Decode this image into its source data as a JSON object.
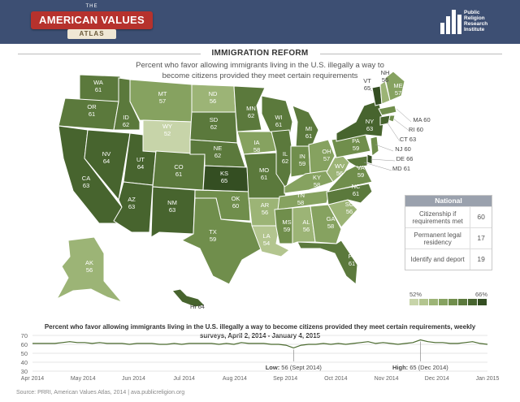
{
  "header": {
    "logo_the": "THE",
    "logo_main": "AMERICAN VALUES",
    "logo_sub": "ATLAS",
    "org_name": [
      "Public",
      "Religion",
      "Research",
      "Institute"
    ]
  },
  "title": "IMMIGRATION REFORM",
  "subtitle": "Percent who favor allowing immigrants living in the U.S. illegally a way to become citizens provided they meet certain requirements",
  "map": {
    "states": [
      {
        "abbr": "WA",
        "value": 61
      },
      {
        "abbr": "OR",
        "value": 61
      },
      {
        "abbr": "CA",
        "value": 63
      },
      {
        "abbr": "ID",
        "value": 62
      },
      {
        "abbr": "NV",
        "value": 64
      },
      {
        "abbr": "UT",
        "value": 64
      },
      {
        "abbr": "AZ",
        "value": 63
      },
      {
        "abbr": "MT",
        "value": 57
      },
      {
        "abbr": "WY",
        "value": 52
      },
      {
        "abbr": "CO",
        "value": 61
      },
      {
        "abbr": "NM",
        "value": 63
      },
      {
        "abbr": "ND",
        "value": 56
      },
      {
        "abbr": "SD",
        "value": 62
      },
      {
        "abbr": "NE",
        "value": 62
      },
      {
        "abbr": "KS",
        "value": 65
      },
      {
        "abbr": "OK",
        "value": 60
      },
      {
        "abbr": "TX",
        "value": 59
      },
      {
        "abbr": "MN",
        "value": 62
      },
      {
        "abbr": "IA",
        "value": 58
      },
      {
        "abbr": "MO",
        "value": 61
      },
      {
        "abbr": "AR",
        "value": 56
      },
      {
        "abbr": "LA",
        "value": 54
      },
      {
        "abbr": "WI",
        "value": 61
      },
      {
        "abbr": "IL",
        "value": 62
      },
      {
        "abbr": "MI",
        "value": 61
      },
      {
        "abbr": "IN",
        "value": 59
      },
      {
        "abbr": "OH",
        "value": 57
      },
      {
        "abbr": "KY",
        "value": 58
      },
      {
        "abbr": "TN",
        "value": 58
      },
      {
        "abbr": "MS",
        "value": 59
      },
      {
        "abbr": "AL",
        "value": 56
      },
      {
        "abbr": "GA",
        "value": 58
      },
      {
        "abbr": "FL",
        "value": 61
      },
      {
        "abbr": "SC",
        "value": 56
      },
      {
        "abbr": "NC",
        "value": 61
      },
      {
        "abbr": "VA",
        "value": 59
      },
      {
        "abbr": "WV",
        "value": 56
      },
      {
        "abbr": "PA",
        "value": 59
      },
      {
        "abbr": "NY",
        "value": 63
      },
      {
        "abbr": "VT",
        "value": 65
      },
      {
        "abbr": "NH",
        "value": 56
      },
      {
        "abbr": "ME",
        "value": 57
      },
      {
        "abbr": "MA",
        "value": 60
      },
      {
        "abbr": "RI",
        "value": 60
      },
      {
        "abbr": "CT",
        "value": 63
      },
      {
        "abbr": "NJ",
        "value": 60
      },
      {
        "abbr": "DE",
        "value": 66
      },
      {
        "abbr": "MD",
        "value": 61
      },
      {
        "abbr": "AK",
        "value": 56
      },
      {
        "abbr": "HI",
        "value": 64
      }
    ]
  },
  "national": {
    "heading": "National",
    "rows": [
      {
        "label": "Citizenship if requirements met",
        "value": "60"
      },
      {
        "label": "Permanent legal residency",
        "value": "17"
      },
      {
        "label": "Identify and deport",
        "value": "19"
      }
    ]
  },
  "legend": {
    "low": "52%",
    "high": "66%",
    "colors": [
      "#c7d4a9",
      "#b3c58f",
      "#9cb476",
      "#86a260",
      "#708e4c",
      "#5b793c",
      "#47642e",
      "#344e22"
    ]
  },
  "chart_data": {
    "type": "line",
    "title": "Percent who favor allowing immigrants living in the U.S. illegally a way to become citizens provided they meet certain requirements, weekly surveys, April 2, 2014 - January 4, 2015",
    "yticks": [
      "70",
      "60",
      "50",
      "40",
      "30"
    ],
    "ylim": [
      30,
      70
    ],
    "xtick_labels": [
      "Apr 2014",
      "May 2014",
      "Jun 2014",
      "Jul 2014",
      "Aug 2014",
      "Sep 2014",
      "Oct 2014",
      "Nov 2014",
      "Dec 2014",
      "Jan 2015"
    ],
    "annotations": [
      {
        "label": "Low:",
        "value": "56 (Sept 2014)"
      },
      {
        "label": "High:",
        "value": "65 (Dec 2014)"
      }
    ],
    "series": [
      {
        "name": "Favor",
        "values": [
          61,
          61,
          61,
          61,
          62,
          63,
          62,
          62,
          61,
          62,
          61,
          61,
          61,
          60,
          61,
          61,
          61,
          60,
          60,
          61,
          60,
          61,
          61,
          61,
          61,
          60,
          61,
          60,
          62,
          61,
          61,
          61,
          60,
          60,
          59,
          56,
          59,
          60,
          60,
          61,
          60,
          61,
          60,
          61,
          62,
          63,
          61,
          62,
          61,
          60,
          61,
          62,
          65,
          63,
          62,
          62,
          61,
          61,
          62,
          63,
          61,
          60
        ]
      }
    ]
  },
  "footer": "Source: PRRI, American Values Atlas, 2014  |  ava.publicreligion.org"
}
